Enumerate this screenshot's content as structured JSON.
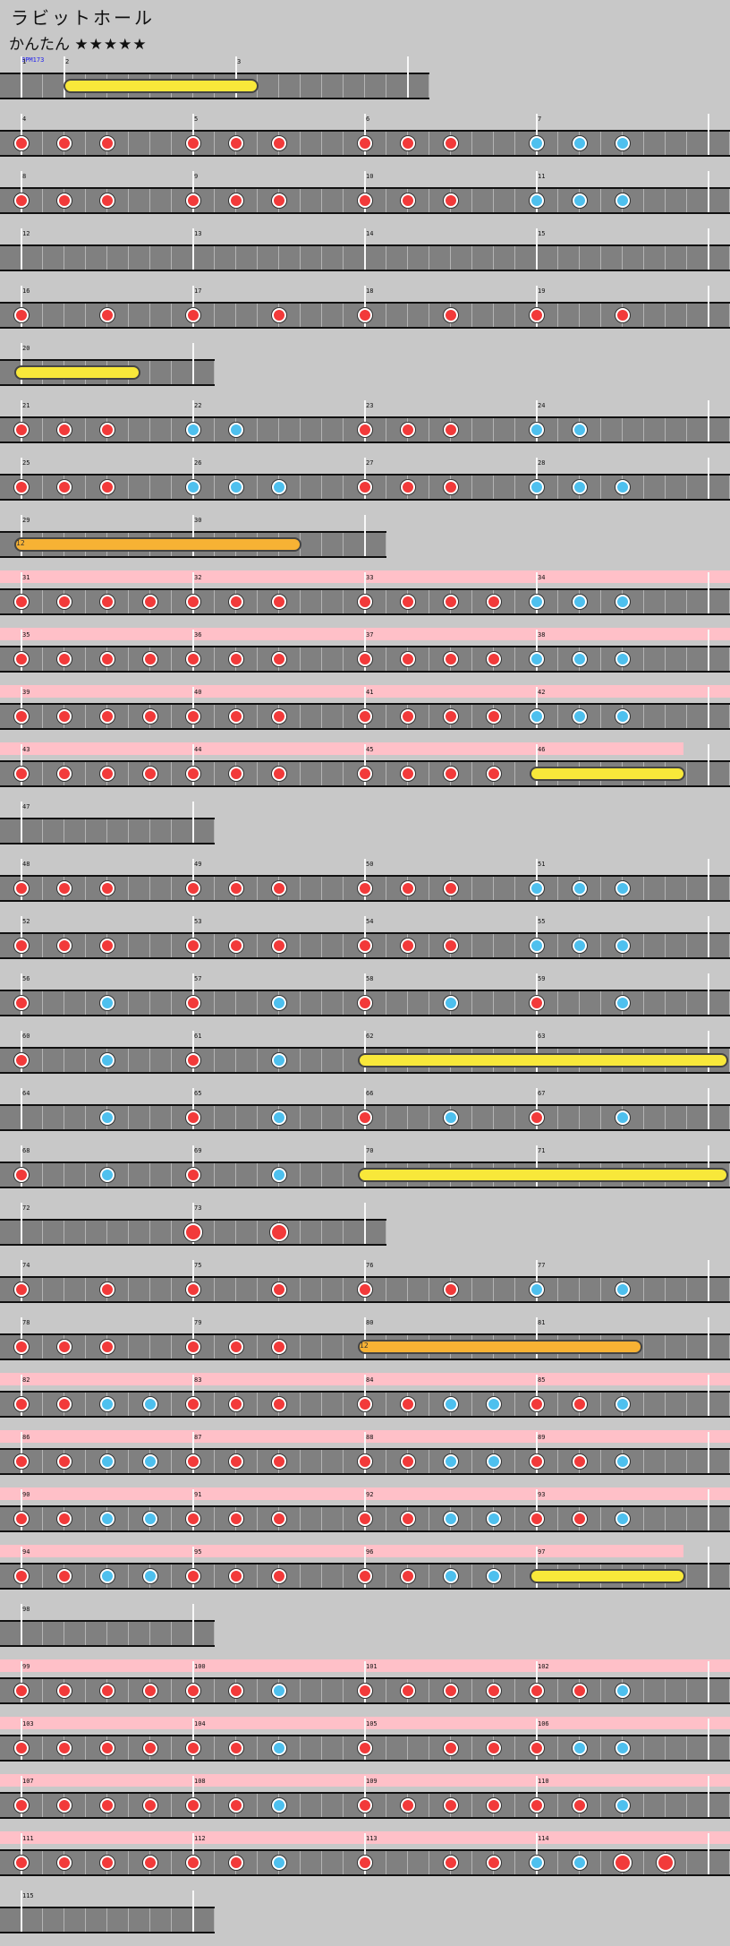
{
  "header": {
    "title": "ラビットホール",
    "difficulty": "かんたん",
    "stars": "★★★★★",
    "bpm": "BPM173"
  },
  "colors": {
    "don": "#f23a3a",
    "ka": "#4ec0ee",
    "roll": "#f8e83a",
    "balloon": "#f7b234",
    "gogo": "#ffc0c8"
  },
  "rows": [
    {
      "measures": [
        "1",
        "2",
        "3"
      ],
      "first_measure_eighths": 2,
      "notes": "",
      "rolls": [
        [
          2.3,
          10.7
        ]
      ]
    },
    {
      "measures": [
        "4",
        "5",
        "6",
        "7"
      ],
      "notes": "d.d.d...d.d.d...d.d.d...k.k.k..."
    },
    {
      "measures": [
        "8",
        "9",
        "10",
        "11"
      ],
      "notes": "d.d.d...d.d.d...d.d.d...k.k.k..."
    },
    {
      "measures": [
        "12",
        "13",
        "14",
        "15"
      ],
      "notes": ""
    },
    {
      "measures": [
        "16",
        "17",
        "18",
        "19"
      ],
      "notes": "d...d...d...d...d...d...d...d..."
    },
    {
      "measures": [
        "20"
      ],
      "notes": "",
      "rolls": [
        [
          0,
          5.2
        ]
      ]
    },
    {
      "measures": [
        "21",
        "22",
        "23",
        "24"
      ],
      "notes": "d.d.d...k.k.....d.d.d...k.k....."
    },
    {
      "measures": [
        "25",
        "26",
        "27",
        "28"
      ],
      "notes": "d.d.d...k.k.k...d.d.d...k.k.k..."
    },
    {
      "measures": [
        "29",
        "30"
      ],
      "notes": "",
      "balloons": [
        [
          0,
          12.7,
          "12"
        ]
      ]
    },
    {
      "measures": [
        "31",
        "32",
        "33",
        "34"
      ],
      "gogo": true,
      "notes": "d.d.d.d.d.d.d...d.d.d.d.k.k.k..."
    },
    {
      "measures": [
        "35",
        "36",
        "37",
        "38"
      ],
      "gogo": true,
      "notes": "d.d.d.d.d.d.d...d.d.d.d.k.k.k..."
    },
    {
      "measures": [
        "39",
        "40",
        "41",
        "42"
      ],
      "gogo": true,
      "notes": "d.d.d.d.d.d.d...d.d.d.d.k.k.k..."
    },
    {
      "measures": [
        "43",
        "44",
        "45",
        "46"
      ],
      "gogo": true,
      "gogo_end": 31,
      "notes": "d.d.d.d.d.d.d...d.d.d.d.........",
      "rolls": [
        [
          24,
          30.6
        ]
      ]
    },
    {
      "measures": [
        "47"
      ],
      "notes": ""
    },
    {
      "measures": [
        "48",
        "49",
        "50",
        "51"
      ],
      "notes": "d.d.d...d.d.d...d.d.d...k.k.k..."
    },
    {
      "measures": [
        "52",
        "53",
        "54",
        "55"
      ],
      "notes": "d.d.d...d.d.d...d.d.d...k.k.k..."
    },
    {
      "measures": [
        "56",
        "57",
        "58",
        "59"
      ],
      "notes": "d...k...d...k...d...k...d...k..."
    },
    {
      "measures": [
        "60",
        "61",
        "62",
        "63"
      ],
      "notes": "d...k...d...k...",
      "rolls": [
        [
          16,
          32.6
        ]
      ]
    },
    {
      "measures": [
        "64",
        "65",
        "66",
        "67"
      ],
      "notes": "....k...d...k...d...k...d...k..."
    },
    {
      "measures": [
        "68",
        "69",
        "70",
        "71"
      ],
      "notes": "d...k...d...k...",
      "rolls": [
        [
          16,
          32.6
        ]
      ]
    },
    {
      "measures": [
        "72",
        "73"
      ],
      "notes": "........D...D..."
    },
    {
      "measures": [
        "74",
        "75",
        "76",
        "77"
      ],
      "notes": "d...d...d...d...d...d...k...k..."
    },
    {
      "measures": [
        "78",
        "79",
        "80",
        "81"
      ],
      "notes": "d.d.d...d.d.d...",
      "balloons": [
        [
          16,
          28.6,
          "12"
        ]
      ]
    },
    {
      "measures": [
        "82",
        "83",
        "84",
        "85"
      ],
      "gogo": true,
      "notes": "d.d.k.k.d.d.d...d.d.k.k.d.d.k..."
    },
    {
      "measures": [
        "86",
        "87",
        "88",
        "89"
      ],
      "gogo": true,
      "notes": "d.d.k.k.d.d.d...d.d.k.k.d.d.k..."
    },
    {
      "measures": [
        "90",
        "91",
        "92",
        "93"
      ],
      "gogo": true,
      "notes": "d.d.k.k.d.d.d...d.d.k.k.d.d.k..."
    },
    {
      "measures": [
        "94",
        "95",
        "96",
        "97"
      ],
      "gogo": true,
      "gogo_end": 31,
      "notes": "d.d.k.k.d.d.d...d.d.k.k.........",
      "rolls": [
        [
          24,
          30.6
        ]
      ]
    },
    {
      "measures": [
        "98"
      ],
      "notes": ""
    },
    {
      "measures": [
        "99",
        "100",
        "101",
        "102"
      ],
      "gogo": true,
      "notes": "d.d.d.d.d.d.k...d.d.d.d.d.d.k..."
    },
    {
      "measures": [
        "103",
        "104",
        "105",
        "106"
      ],
      "gogo": true,
      "notes": "d.d.d.d.d.d.k...d...d.d.d.k.k..."
    },
    {
      "measures": [
        "107",
        "108",
        "109",
        "110"
      ],
      "gogo": true,
      "notes": "d.d.d.d.d.d.k...d.d.d.d.d.d.k..."
    },
    {
      "measures": [
        "111",
        "112",
        "113",
        "114"
      ],
      "gogo": true,
      "notes": "d.d.d.d.d.d.k...d...d.d.k.k.D.D."
    },
    {
      "measures": [
        "115"
      ],
      "notes": ""
    }
  ]
}
